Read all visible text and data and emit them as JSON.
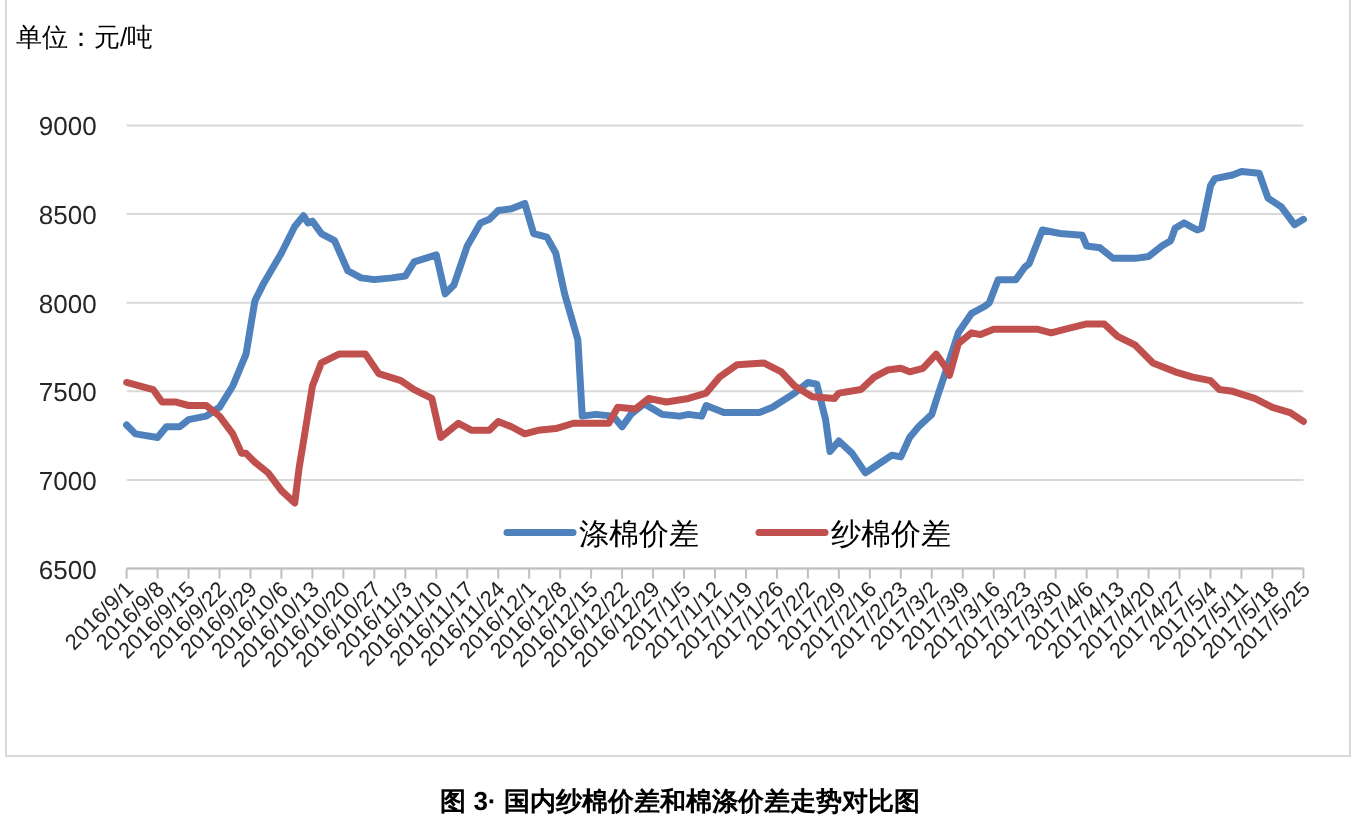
{
  "chart_data": {
    "type": "line",
    "title": "图 3· 国内纱棉价差和棉涤价差走势对比图",
    "ylabel": "单位：元/吨",
    "xlim": [
      "2016-09-01",
      "2017-05-25"
    ],
    "xticks": [
      {
        "value": "2016-09-01",
        "label": "2016/9/1"
      },
      {
        "value": "2016-09-08",
        "label": "2016/9/8"
      },
      {
        "value": "2016-09-15",
        "label": "2016/9/15"
      },
      {
        "value": "2016-09-22",
        "label": "2016/9/22"
      },
      {
        "value": "2016-09-29",
        "label": "2016/9/29"
      },
      {
        "value": "2016-10-06",
        "label": "2016/10/6"
      },
      {
        "value": "2016-10-13",
        "label": "2016/10/13"
      },
      {
        "value": "2016-10-20",
        "label": "2016/10/20"
      },
      {
        "value": "2016-10-27",
        "label": "2016/10/27"
      },
      {
        "value": "2016-11-03",
        "label": "2016/11/3"
      },
      {
        "value": "2016-11-10",
        "label": "2016/11/10"
      },
      {
        "value": "2016-11-17",
        "label": "2016/11/17"
      },
      {
        "value": "2016-11-24",
        "label": "2016/11/24"
      },
      {
        "value": "2016-12-01",
        "label": "2016/12/1"
      },
      {
        "value": "2016-12-08",
        "label": "2016/12/8"
      },
      {
        "value": "2016-12-15",
        "label": "2016/12/15"
      },
      {
        "value": "2016-12-22",
        "label": "2016/12/22"
      },
      {
        "value": "2016-12-29",
        "label": "2016/12/29"
      },
      {
        "value": "2017-01-05",
        "label": "2017/1/5"
      },
      {
        "value": "2017-01-12",
        "label": "2017/1/12"
      },
      {
        "value": "2017-01-19",
        "label": "2017/1/19"
      },
      {
        "value": "2017-01-26",
        "label": "2017/1/26"
      },
      {
        "value": "2017-02-02",
        "label": "2017/2/2"
      },
      {
        "value": "2017-02-09",
        "label": "2017/2/9"
      },
      {
        "value": "2017-02-16",
        "label": "2017/2/16"
      },
      {
        "value": "2017-02-23",
        "label": "2017/2/23"
      },
      {
        "value": "2017-03-02",
        "label": "2017/3/2"
      },
      {
        "value": "2017-03-09",
        "label": "2017/3/9"
      },
      {
        "value": "2017-03-16",
        "label": "2017/3/16"
      },
      {
        "value": "2017-03-23",
        "label": "2017/3/23"
      },
      {
        "value": "2017-03-30",
        "label": "2017/3/30"
      },
      {
        "value": "2017-04-06",
        "label": "2017/4/6"
      },
      {
        "value": "2017-04-13",
        "label": "2017/4/13"
      },
      {
        "value": "2017-04-20",
        "label": "2017/4/20"
      },
      {
        "value": "2017-04-27",
        "label": "2017/4/27"
      },
      {
        "value": "2017-05-04",
        "label": "2017/5/4"
      },
      {
        "value": "2017-05-11",
        "label": "2017/5/11"
      },
      {
        "value": "2017-05-18",
        "label": "2017/5/18"
      },
      {
        "value": "2017-05-25",
        "label": "2017/5/25"
      }
    ],
    "ylim": [
      6500,
      9000
    ],
    "yticks": [
      6500,
      7000,
      7500,
      8000,
      8500,
      9000
    ],
    "grid": "y",
    "legend": "bottom",
    "line_style": "solid",
    "series": [
      {
        "name": "涤棉价差",
        "color": "#4f81bd",
        "x": [
          "2016-09-01",
          "2016-09-03",
          "2016-09-08",
          "2016-09-10",
          "2016-09-13",
          "2016-09-15",
          "2016-09-19",
          "2016-09-22",
          "2016-09-25",
          "2016-09-28",
          "2016-09-30",
          "2016-10-02",
          "2016-10-06",
          "2016-10-09",
          "2016-10-11",
          "2016-10-12",
          "2016-10-13",
          "2016-10-15",
          "2016-10-18",
          "2016-10-21",
          "2016-10-24",
          "2016-10-27",
          "2016-10-31",
          "2016-11-03",
          "2016-11-05",
          "2016-11-10",
          "2016-11-12",
          "2016-11-14",
          "2016-11-17",
          "2016-11-20",
          "2016-11-22",
          "2016-11-24",
          "2016-11-27",
          "2016-11-30",
          "2016-12-02",
          "2016-12-05",
          "2016-12-07",
          "2016-12-09",
          "2016-12-12",
          "2016-12-13",
          "2016-12-16",
          "2016-12-20",
          "2016-12-22",
          "2016-12-24",
          "2016-12-27",
          "2016-12-31",
          "2017-01-04",
          "2017-01-06",
          "2017-01-09",
          "2017-01-10",
          "2017-01-14",
          "2017-01-22",
          "2017-01-25",
          "2017-01-30",
          "2017-02-02",
          "2017-02-04",
          "2017-02-06",
          "2017-02-07",
          "2017-02-09",
          "2017-02-12",
          "2017-02-15",
          "2017-02-18",
          "2017-02-21",
          "2017-02-23",
          "2017-02-25",
          "2017-02-27",
          "2017-03-02",
          "2017-03-03",
          "2017-03-05",
          "2017-03-08",
          "2017-03-11",
          "2017-03-14",
          "2017-03-15",
          "2017-03-17",
          "2017-03-21",
          "2017-03-23",
          "2017-03-24",
          "2017-03-27",
          "2017-03-31",
          "2017-04-05",
          "2017-04-06",
          "2017-04-09",
          "2017-04-12",
          "2017-04-17",
          "2017-04-20",
          "2017-04-23",
          "2017-04-25",
          "2017-04-26",
          "2017-04-28",
          "2017-05-01",
          "2017-05-02",
          "2017-05-04",
          "2017-05-05",
          "2017-05-09",
          "2017-05-11",
          "2017-05-15",
          "2017-05-17",
          "2017-05-20",
          "2017-05-23",
          "2017-05-25"
        ],
        "values": [
          7310,
          7260,
          7240,
          7300,
          7300,
          7340,
          7360,
          7410,
          7530,
          7710,
          8010,
          8110,
          8280,
          8430,
          8490,
          8450,
          8460,
          8390,
          8350,
          8180,
          8140,
          8130,
          8140,
          8150,
          8230,
          8270,
          8050,
          8100,
          8320,
          8450,
          8470,
          8520,
          8530,
          8560,
          8390,
          8370,
          8280,
          8050,
          7790,
          7360,
          7370,
          7360,
          7300,
          7370,
          7430,
          7370,
          7360,
          7370,
          7360,
          7420,
          7380,
          7380,
          7410,
          7490,
          7550,
          7540,
          7340,
          7160,
          7220,
          7150,
          7040,
          7090,
          7140,
          7130,
          7240,
          7300,
          7370,
          7450,
          7600,
          7830,
          7940,
          7980,
          8000,
          8130,
          8130,
          8200,
          8220,
          8410,
          8390,
          8380,
          8320,
          8310,
          8250,
          8250,
          8260,
          8320,
          8350,
          8420,
          8450,
          8410,
          8420,
          8660,
          8700,
          8720,
          8740,
          8730,
          8590,
          8540,
          8440,
          8470
        ]
      },
      {
        "name": "纱棉价差",
        "color": "#c0504d",
        "x": [
          "2016-09-01",
          "2016-09-07",
          "2016-09-09",
          "2016-09-12",
          "2016-09-15",
          "2016-09-19",
          "2016-09-22",
          "2016-09-25",
          "2016-09-27",
          "2016-09-28",
          "2016-09-30",
          "2016-10-03",
          "2016-10-06",
          "2016-10-09",
          "2016-10-10",
          "2016-10-11",
          "2016-10-13",
          "2016-10-15",
          "2016-10-19",
          "2016-10-25",
          "2016-10-28",
          "2016-11-02",
          "2016-11-05",
          "2016-11-09",
          "2016-11-11",
          "2016-11-15",
          "2016-11-18",
          "2016-11-22",
          "2016-11-24",
          "2016-11-27",
          "2016-11-30",
          "2016-12-03",
          "2016-12-07",
          "2016-12-11",
          "2016-12-17",
          "2016-12-19",
          "2016-12-21",
          "2016-12-25",
          "2016-12-28",
          "2017-01-01",
          "2017-01-06",
          "2017-01-10",
          "2017-01-13",
          "2017-01-17",
          "2017-01-23",
          "2017-01-27",
          "2017-01-30",
          "2017-02-03",
          "2017-02-08",
          "2017-02-09",
          "2017-02-14",
          "2017-02-17",
          "2017-02-20",
          "2017-02-23",
          "2017-02-25",
          "2017-02-28",
          "2017-03-03",
          "2017-03-05",
          "2017-03-06",
          "2017-03-08",
          "2017-03-11",
          "2017-03-13",
          "2017-03-16",
          "2017-03-22",
          "2017-03-26",
          "2017-03-29",
          "2017-04-01",
          "2017-04-06",
          "2017-04-10",
          "2017-04-13",
          "2017-04-17",
          "2017-04-21",
          "2017-04-26",
          "2017-04-30",
          "2017-05-04",
          "2017-05-06",
          "2017-05-09",
          "2017-05-14",
          "2017-05-18",
          "2017-05-22",
          "2017-05-25"
        ],
        "values": [
          7550,
          7510,
          7440,
          7440,
          7420,
          7420,
          7360,
          7260,
          7150,
          7150,
          7100,
          7040,
          6940,
          6870,
          7070,
          7220,
          7530,
          7660,
          7710,
          7710,
          7600,
          7560,
          7510,
          7460,
          7240,
          7320,
          7280,
          7280,
          7330,
          7300,
          7260,
          7280,
          7290,
          7320,
          7320,
          7320,
          7410,
          7400,
          7460,
          7440,
          7460,
          7490,
          7580,
          7650,
          7660,
          7610,
          7530,
          7470,
          7460,
          7490,
          7510,
          7580,
          7620,
          7630,
          7610,
          7630,
          7710,
          7640,
          7590,
          7770,
          7830,
          7820,
          7850,
          7850,
          7850,
          7830,
          7850,
          7880,
          7880,
          7810,
          7760,
          7660,
          7610,
          7580,
          7560,
          7510,
          7500,
          7460,
          7410,
          7380,
          7330
        ]
      }
    ]
  }
}
